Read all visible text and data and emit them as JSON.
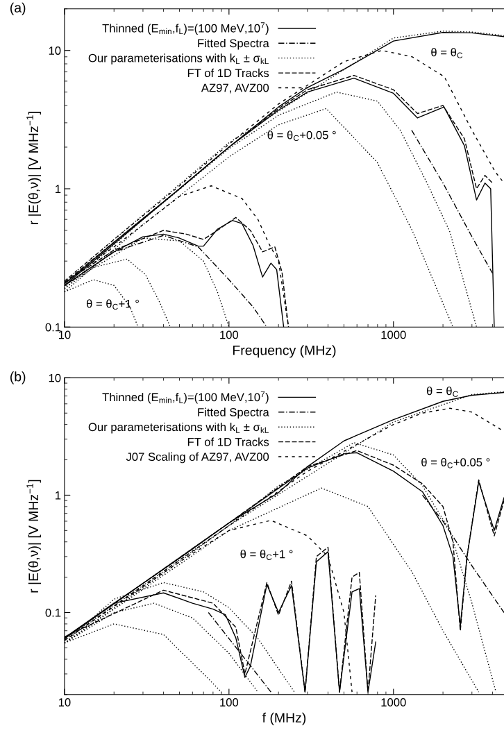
{
  "chart_data": [
    {
      "type": "line",
      "xlabel": "Frequency (MHz)",
      "ylabel": "r |E(θ,ν)| [V MHz$^{−1}$]",
      "log": "xy",
      "legend": "top left",
      "xlim": [
        10,
        4700
      ],
      "ylim": [
        0.1,
        20
      ],
      "xticks": [
        10,
        100,
        1000
      ],
      "yticks": [
        0.1,
        1,
        10
      ],
      "annotations": [
        "(a)",
        "θ = θ$_{C}$",
        "θ = θ$_{C}$+0.05 °",
        "θ = θ$_{C}$+1 °"
      ],
      "series": [
        {
          "name": "Thinned (E$_{min}$,f$_{L}$)=(100 MeV,10$^{7}$)",
          "color": "#000000",
          "line_style": "solid",
          "x": [
            10,
            20,
            50,
            100,
            200,
            300,
            500,
            1000,
            2000,
            3000,
            4700
          ],
          "values": [
            0.205,
            0.41,
            1.0,
            2.0,
            3.9,
            5.4,
            7.3,
            11.7,
            13.5,
            13.4,
            12.6
          ]
        },
        {
          "name": "Fitted Spectra",
          "color": "#000000",
          "line_style": "dashdot",
          "x": [
            10,
            20,
            40,
            65,
            100,
            140,
            170
          ],
          "values": [
            0.2,
            0.35,
            0.46,
            0.38,
            0.22,
            0.14,
            0.1
          ]
        },
        {
          "name": "Our parameterisations with k$_{L}$ ± σ$_{kL}$",
          "color": "#000000",
          "line_style": "dotted",
          "x": [
            10,
            30,
            100,
            200,
            450,
            800,
            1100,
            1600,
            2200,
            3200
          ],
          "values": [
            0.19,
            0.6,
            1.95,
            3.4,
            5.0,
            4.3,
            2.65,
            1.1,
            0.49,
            0.1
          ]
        },
        {
          "name": "FT of 1D Tracks",
          "color": "#000000",
          "line_style": "dashed",
          "x": [
            10,
            50,
            100,
            200,
            300,
            575,
            1000,
            1400,
            2000,
            2700,
            3200,
            3600,
            4000
          ],
          "values": [
            0.21,
            1.0,
            2.0,
            3.8,
            5.2,
            6.6,
            5.2,
            3.5,
            4.0,
            2.3,
            1.0,
            1.25,
            1.1
          ]
        },
        {
          "name": "AZ97, AVZ00",
          "color": "#000000",
          "line_style": "loosely dashed",
          "x": [
            10,
            20,
            50,
            100,
            200,
            500,
            850,
            1300,
            2040,
            3000,
            4150,
            4700
          ],
          "values": [
            0.215,
            0.43,
            1.05,
            2.1,
            4.1,
            8.3,
            10.0,
            9.0,
            6.45,
            2.65,
            1.33,
            1.1
          ]
        },
        {
          "color": "#000000",
          "line_style": "solid",
          "x": [
            10,
            50,
            100,
            200,
            300,
            575,
            1000,
            1400,
            2030,
            2700,
            3200,
            3600,
            3900,
            4100
          ],
          "values": [
            0.2,
            1.0,
            2.0,
            3.7,
            5.0,
            6.3,
            4.9,
            3.25,
            3.9,
            2.05,
            0.83,
            1.1,
            1.0,
            0.1
          ]
        },
        {
          "color": "#000000",
          "line_style": "solid",
          "x": [
            10,
            20,
            30,
            40,
            50,
            65,
            70,
            85,
            105,
            120,
            140,
            160,
            180,
            195,
            215
          ],
          "values": [
            0.2,
            0.35,
            0.45,
            0.47,
            0.44,
            0.385,
            0.385,
            0.51,
            0.59,
            0.56,
            0.39,
            0.23,
            0.29,
            0.26,
            0.1
          ]
        },
        {
          "color": "#000000",
          "line_style": "dashed",
          "x": [
            10,
            20,
            40,
            55,
            70,
            85,
            110,
            135,
            160,
            190,
            210,
            230
          ],
          "values": [
            0.21,
            0.36,
            0.5,
            0.47,
            0.43,
            0.5,
            0.62,
            0.5,
            0.35,
            0.38,
            0.25,
            0.1
          ]
        },
        {
          "color": "#000000",
          "line_style": "loosely dashed",
          "x": [
            10,
            20,
            30,
            50,
            78,
            120,
            150,
            175,
            200,
            230
          ],
          "values": [
            0.21,
            0.38,
            0.55,
            0.88,
            1.05,
            0.85,
            0.6,
            0.4,
            0.3,
            0.1
          ]
        },
        {
          "color": "#000000",
          "line_style": "dotted",
          "x": [
            10,
            15,
            24,
            31,
            38,
            44
          ],
          "values": [
            0.19,
            0.27,
            0.31,
            0.24,
            0.15,
            0.1
          ]
        },
        {
          "color": "#000000",
          "line_style": "dotted",
          "x": [
            10,
            15,
            20,
            25,
            28
          ],
          "values": [
            0.18,
            0.22,
            0.2,
            0.14,
            0.1
          ]
        },
        {
          "color": "#000000",
          "line_style": "dotted",
          "x": [
            10,
            30,
            50,
            70,
            85,
            100
          ],
          "values": [
            0.2,
            0.44,
            0.42,
            0.3,
            0.18,
            0.1
          ]
        },
        {
          "color": "#000000",
          "line_style": "dotted",
          "x": [
            10,
            30,
            100,
            200,
            390,
            795,
            1300,
            2300
          ],
          "values": [
            0.18,
            0.55,
            1.7,
            2.9,
            3.8,
            1.56,
            0.5,
            0.1
          ]
        },
        {
          "color": "#000000",
          "line_style": "dashdot",
          "x": [
            1290,
            2000,
            3000,
            4000
          ],
          "values": [
            2.65,
            1.1,
            0.45,
            0.245
          ]
        },
        {
          "color": "#000000",
          "line_style": "dotted",
          "x": [
            10,
            100,
            1000,
            2000,
            3000,
            4700
          ],
          "values": [
            0.215,
            2.15,
            12.3,
            13.8,
            13.6,
            12.8
          ]
        }
      ]
    },
    {
      "type": "line",
      "xlabel": "f (MHz)",
      "ylabel": "r |E(θ,ν)| [V MHz$^{−1}$]",
      "log": "xy",
      "legend": "top left",
      "xlim": [
        10,
        4700
      ],
      "ylim": [
        0.02,
        10
      ],
      "xticks": [
        10,
        100,
        1000
      ],
      "yticks": [
        0.1,
        1,
        10
      ],
      "annotations": [
        "(b)",
        "θ = θ$_{C}$",
        "θ = θ$_{C}$+0.05 °",
        "θ = θ$_{C}$+1 °"
      ],
      "series": [
        {
          "name": "Thinned (E$_{min}$,f$_{L}$)=(100 MeV,10$^{7}$)",
          "color": "#000000",
          "line_style": "solid",
          "x": [
            10,
            20,
            50,
            100,
            200,
            300,
            500,
            1000,
            2000,
            3000,
            4700
          ],
          "values": [
            0.06,
            0.12,
            0.29,
            0.58,
            1.05,
            1.75,
            2.9,
            4.4,
            6.3,
            7.1,
            7.5
          ]
        },
        {
          "name": "Fitted Spectra",
          "color": "#000000",
          "line_style": "dashdot",
          "x": [
            1500,
            2000,
            3000,
            4700
          ],
          "values": [
            1.0,
            0.6,
            0.25,
            0.1
          ]
        },
        {
          "name": "Our parameterisations with k$_{L}$ ± σ$_{kL}$",
          "color": "#000000",
          "line_style": "dotted",
          "x": [
            10,
            50,
            100,
            200,
            575,
            1000,
            1500,
            2200,
            3000,
            4200
          ],
          "values": [
            0.055,
            0.27,
            0.55,
            1.2,
            2.8,
            2.2,
            1.2,
            0.5,
            0.12,
            0.021
          ]
        },
        {
          "name": "FT of 1D Tracks",
          "color": "#000000",
          "line_style": "dashed",
          "x": [
            10,
            100,
            300,
            600,
            1000,
            1500,
            2000,
            2300,
            2550,
            2800,
            3300,
            4100,
            4700
          ],
          "values": [
            0.06,
            0.58,
            1.75,
            2.4,
            1.8,
            1.25,
            0.8,
            0.4,
            0.07,
            0.3,
            1.35,
            0.45,
            0.9
          ]
        },
        {
          "name": "J07 Scaling of AZ97, AVZ00",
          "color": "#000000",
          "line_style": "loosely dashed",
          "x": [
            10,
            100,
            300,
            1000,
            1500,
            2200,
            3000,
            4700
          ],
          "values": [
            0.058,
            0.55,
            1.6,
            4.0,
            5.0,
            5.5,
            5.1,
            3.5
          ]
        },
        {
          "color": "#000000",
          "line_style": "solid",
          "x": [
            10,
            100,
            300,
            500,
            600,
            1000,
            1500,
            2000,
            2300,
            2550,
            2800,
            3300,
            4100,
            4700
          ],
          "values": [
            0.06,
            0.58,
            1.7,
            2.25,
            2.3,
            1.6,
            1.07,
            0.55,
            0.3,
            0.077,
            0.3,
            1.3,
            0.5,
            0.95
          ]
        },
        {
          "color": "#000000",
          "line_style": "solid",
          "x": [
            10,
            20,
            40,
            60,
            80,
            95,
            110,
            125,
            135,
            170,
            200,
            240,
            290,
            340,
            400,
            470,
            560,
            620,
            700,
            780
          ],
          "values": [
            0.061,
            0.12,
            0.147,
            0.12,
            0.107,
            0.096,
            0.061,
            0.028,
            0.035,
            0.174,
            0.1,
            0.17,
            0.021,
            0.27,
            0.33,
            0.021,
            0.15,
            0.16,
            0.021,
            0.056
          ]
        },
        {
          "color": "#000000",
          "line_style": "dashed",
          "x": [
            10,
            40,
            80,
            110,
            125,
            170,
            200,
            240,
            290,
            340,
            400,
            470,
            560,
            620,
            700,
            780
          ],
          "values": [
            0.062,
            0.155,
            0.12,
            0.075,
            0.03,
            0.18,
            0.095,
            0.185,
            0.021,
            0.3,
            0.36,
            0.021,
            0.2,
            0.22,
            0.021,
            0.14
          ]
        },
        {
          "color": "#000000",
          "line_style": "loosely dashed",
          "x": [
            10,
            50,
            100,
            180,
            300,
            400,
            500,
            560
          ],
          "values": [
            0.058,
            0.27,
            0.5,
            0.61,
            0.45,
            0.3,
            0.1,
            0.021
          ]
        },
        {
          "color": "#000000",
          "line_style": "dotted",
          "x": [
            10,
            20,
            40,
            70,
            100,
            150,
            250
          ],
          "values": [
            0.055,
            0.13,
            0.18,
            0.15,
            0.11,
            0.06,
            0.021
          ]
        },
        {
          "color": "#000000",
          "line_style": "dotted",
          "x": [
            10,
            20,
            35,
            60,
            100,
            150
          ],
          "values": [
            0.055,
            0.1,
            0.12,
            0.09,
            0.045,
            0.021
          ]
        },
        {
          "color": "#000000",
          "line_style": "dotted",
          "x": [
            10,
            20,
            40,
            70,
            90
          ],
          "values": [
            0.055,
            0.08,
            0.065,
            0.03,
            0.021
          ]
        },
        {
          "color": "#000000",
          "line_style": "dashdot",
          "x": [
            75,
            100,
            140,
            180
          ],
          "values": [
            0.1,
            0.06,
            0.033,
            0.021
          ]
        },
        {
          "color": "#000000",
          "line_style": "dotted",
          "x": [
            10,
            100,
            365,
            700,
            1300,
            2000,
            3300
          ],
          "values": [
            0.055,
            0.5,
            1.15,
            0.8,
            0.22,
            0.07,
            0.021
          ]
        },
        {
          "color": "#000000",
          "line_style": "dotted",
          "x": [
            10,
            100,
            1000,
            3000,
            4700
          ],
          "values": [
            0.058,
            0.55,
            4.2,
            7.2,
            7.6
          ]
        }
      ]
    }
  ]
}
